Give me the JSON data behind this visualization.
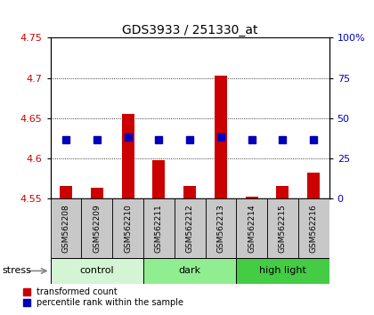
{
  "title": "GDS3933 / 251330_at",
  "samples": [
    "GSM562208",
    "GSM562209",
    "GSM562210",
    "GSM562211",
    "GSM562212",
    "GSM562213",
    "GSM562214",
    "GSM562215",
    "GSM562216"
  ],
  "red_values": [
    4.565,
    4.563,
    4.655,
    4.598,
    4.565,
    4.703,
    4.552,
    4.565,
    4.582
  ],
  "blue_values": [
    4.623,
    4.623,
    4.626,
    4.623,
    4.623,
    4.627,
    4.623,
    4.623,
    4.623
  ],
  "bar_bottom": 4.55,
  "ylim_left": [
    4.55,
    4.75
  ],
  "ylim_right": [
    0,
    100
  ],
  "yticks_left": [
    4.55,
    4.6,
    4.65,
    4.7,
    4.75
  ],
  "yticks_right": [
    0,
    25,
    50,
    75,
    100
  ],
  "ytick_labels_left": [
    "4.55",
    "4.6",
    "4.65",
    "4.7",
    "4.75"
  ],
  "ytick_labels_right": [
    "0",
    "25",
    "50",
    "75",
    "100%"
  ],
  "groups": [
    {
      "label": "control",
      "start": 0,
      "end": 3,
      "color": "#d4f5d4"
    },
    {
      "label": "dark",
      "start": 3,
      "end": 6,
      "color": "#90ee90"
    },
    {
      "label": "high light",
      "start": 6,
      "end": 9,
      "color": "#44cc44"
    }
  ],
  "group_label_prefix": "stress",
  "red_color": "#cc0000",
  "blue_color": "#0000bb",
  "bar_width": 0.4,
  "marker_size": 6,
  "bg_sample": "#c8c8c8",
  "legend_red": "transformed count",
  "legend_blue": "percentile rank within the sample"
}
